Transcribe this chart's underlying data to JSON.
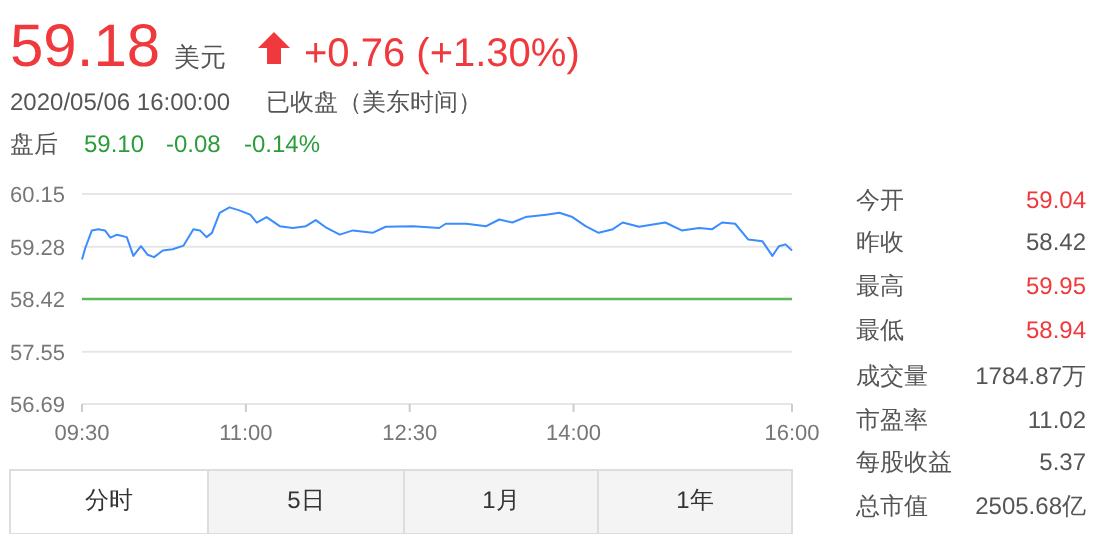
{
  "chart_data": {
    "type": "line",
    "title": "59.18",
    "annotations": [
      "美元",
      "+0.76 (+1.30%)",
      "2020/05/06 16:00:00",
      "已收盘（美东时间）",
      "盘后",
      "59.10",
      "-0.08",
      "-0.14%",
      "今开",
      "59.04",
      "昨收",
      "58.42",
      "最高",
      "59.95",
      "最低",
      "58.94",
      "成交量",
      "1784.87万",
      "市盈率",
      "11.02",
      "每股收益",
      "5.37",
      "总市值",
      "2505.68亿",
      "分时",
      "5日",
      "1月",
      "1年"
    ],
    "x": [
      9.5,
      9.53,
      9.59,
      9.65,
      9.71,
      9.76,
      9.82,
      9.91,
      9.97,
      10.04,
      10.1,
      10.16,
      10.24,
      10.33,
      10.43,
      10.52,
      10.58,
      10.64,
      10.69,
      10.76,
      10.85,
      10.94,
      11.04,
      11.1,
      11.19,
      11.31,
      11.43,
      11.55,
      11.64,
      11.74,
      11.86,
      11.98,
      12.16,
      12.28,
      12.53,
      12.77,
      12.83,
      13.02,
      13.2,
      13.32,
      13.44,
      13.56,
      13.75,
      13.87,
      13.99,
      14.11,
      14.23,
      14.36,
      14.45,
      14.6,
      14.84,
      14.99,
      15.15,
      15.27,
      15.36,
      15.48,
      15.6,
      15.73,
      15.82,
      15.88,
      15.94,
      16.0
    ],
    "series": [
      {
        "color": "#3b8cff",
        "values": [
          59.07,
          59.26,
          59.55,
          59.57,
          59.55,
          59.43,
          59.48,
          59.44,
          59.13,
          59.29,
          59.15,
          59.11,
          59.22,
          59.24,
          59.3,
          59.57,
          59.55,
          59.44,
          59.51,
          59.84,
          59.93,
          59.88,
          59.81,
          59.68,
          59.77,
          59.62,
          59.59,
          59.62,
          59.72,
          59.59,
          59.48,
          59.55,
          59.51,
          59.61,
          59.62,
          59.59,
          59.66,
          59.66,
          59.62,
          59.73,
          59.68,
          59.77,
          59.81,
          59.84,
          59.77,
          59.62,
          59.51,
          59.57,
          59.68,
          59.61,
          59.68,
          59.55,
          59.59,
          59.57,
          59.68,
          59.66,
          59.4,
          59.37,
          59.13,
          59.29,
          59.32,
          59.22
        ]
      }
    ],
    "xlim": [
      9.5,
      16.0
    ],
    "xticks": [
      {
        "value": 9.5,
        "label": "09:30"
      },
      {
        "value": 11,
        "label": "11:00"
      },
      {
        "value": 12.5,
        "label": "12:30"
      },
      {
        "value": 14,
        "label": "14:00"
      },
      {
        "value": 16,
        "label": "16:00"
      }
    ],
    "ylim": [
      56.69,
      60.15
    ],
    "yticks": [
      56.69,
      57.55,
      58.42,
      59.28,
      60.15
    ],
    "ref_lines": [
      {
        "axis": "y",
        "value": 58.42,
        "color": "#5cb85c"
      }
    ],
    "grid": "y"
  }
}
